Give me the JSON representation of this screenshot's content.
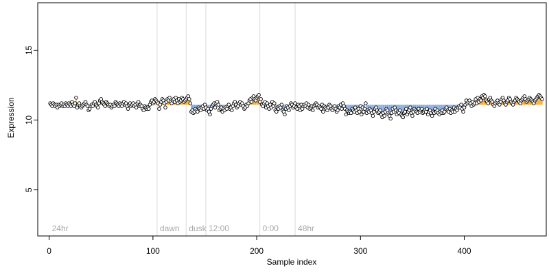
{
  "chart_data": {
    "type": "scatter",
    "xlabel": "Sample index",
    "ylabel": "Expression",
    "xlim": [
      -11,
      479
    ],
    "ylim": [
      1.7,
      18.4
    ],
    "x_ticks": [
      0,
      100,
      200,
      300,
      400
    ],
    "y_ticks": [
      5,
      10,
      15
    ],
    "grid": false,
    "baseline": 11.1,
    "colors": {
      "point_stroke": "#000000",
      "point_fill": "#ffffff",
      "above_baseline": "#F5A623",
      "below_baseline": "#7FA6E0",
      "marker_lines": "#d9d9d9",
      "marker_text": "#a8a8a8"
    },
    "markers": [
      {
        "x": 0,
        "label": "24hr",
        "line": false
      },
      {
        "x": 104,
        "label": "dawn",
        "line": true
      },
      {
        "x": 132,
        "label": "dusk",
        "line": true
      },
      {
        "x": 151,
        "label": "12:00",
        "line": true
      },
      {
        "x": 203,
        "label": "0:00",
        "line": true
      },
      {
        "x": 237,
        "label": "48hr",
        "line": true
      }
    ],
    "series": [
      {
        "values": [
          11.2,
          11.1,
          11.0,
          11.2,
          11.1,
          11.0,
          11.1,
          10.9,
          11.1,
          11.0,
          11.1,
          11.2,
          11.0,
          11.1,
          11.0,
          11.2,
          11.1,
          11.0,
          11.2,
          11.1,
          11.0,
          11.3,
          11.1,
          11.0,
          11.2,
          11.6,
          10.9,
          11.1,
          11.2,
          11.0,
          10.9,
          11.0,
          11.1,
          11.2,
          11.3,
          11.1,
          11.0,
          10.7,
          10.8,
          11.0,
          11.1,
          11.0,
          11.2,
          11.3,
          11.1,
          11.0,
          10.9,
          11.2,
          11.4,
          11.5,
          11.3,
          11.2,
          11.1,
          11.0,
          11.3,
          11.2,
          11.1,
          11.0,
          11.1,
          10.9,
          11.0,
          11.1,
          11.0,
          11.3,
          11.2,
          11.1,
          11.0,
          11.2,
          11.1,
          11.0,
          11.2,
          11.3,
          11.1,
          11.2,
          11.0,
          10.8,
          11.1,
          11.2,
          11.0,
          11.1,
          11.2,
          11.0,
          11.1,
          10.9,
          11.2,
          11.3,
          11.0,
          11.1,
          11.0,
          10.8,
          10.7,
          11.0,
          10.9,
          10.8,
          10.9,
          10.8,
          11.1,
          11.3,
          11.4,
          11.2,
          11.3,
          11.5,
          11.4,
          11.3,
          11.2,
          10.8,
          11.1,
          11.3,
          11.5,
          11.4,
          11.2,
          10.9,
          11.3,
          11.5,
          11.4,
          11.6,
          11.3,
          11.2,
          11.4,
          11.5,
          11.3,
          11.6,
          11.4,
          11.2,
          11.5,
          11.3,
          11.4,
          11.6,
          11.5,
          11.3,
          11.4,
          11.5,
          11.6,
          11.7,
          11.5,
          11.2,
          10.6,
          10.7,
          10.5,
          10.6,
          10.8,
          10.7,
          10.6,
          10.9,
          10.8,
          10.7,
          10.9,
          11.0,
          10.8,
          11.1,
          10.9,
          10.7,
          10.8,
          10.6,
          10.4,
          10.8,
          11.0,
          11.1,
          11.2,
          10.9,
          11.2,
          11.3,
          11.1,
          10.7,
          10.8,
          10.9,
          10.6,
          10.8,
          10.7,
          10.9,
          10.8,
          11.0,
          11.1,
          10.8,
          10.9,
          10.7,
          11.0,
          11.2,
          11.3,
          11.1,
          10.9,
          11.0,
          11.2,
          11.3,
          11.1,
          11.2,
          11.0,
          10.8,
          10.9,
          11.1,
          11.0,
          11.2,
          11.4,
          11.5,
          11.3,
          11.6,
          11.7,
          11.5,
          11.4,
          11.6,
          11.7,
          11.8,
          11.3,
          11.5,
          11.1,
          11.0,
          11.2,
          11.3,
          10.9,
          11.2,
          11.0,
          10.8,
          11.1,
          10.9,
          11.3,
          11.0,
          11.2,
          10.7,
          10.6,
          10.9,
          10.8,
          11.0,
          10.9,
          11.1,
          10.7,
          10.6,
          10.4,
          10.8,
          11.0,
          10.9,
          10.7,
          11.0,
          11.2,
          11.1,
          10.9,
          11.0,
          11.2,
          10.9,
          10.8,
          11.1,
          11.0,
          10.7,
          11.1,
          10.8,
          11.0,
          11.1,
          11.0,
          11.2,
          10.9,
          11.1,
          10.8,
          10.9,
          11.0,
          10.7,
          11.0,
          11.1,
          11.2,
          11.1,
          10.9,
          11.0,
          10.9,
          10.8,
          11.1,
          10.6,
          11.0,
          10.9,
          10.8,
          10.7,
          10.9,
          11.1,
          11.0,
          10.8,
          10.7,
          10.9,
          11.0,
          10.8,
          10.6,
          10.7,
          11.0,
          10.9,
          11.1,
          10.8,
          11.2,
          11.0,
          10.8,
          10.4,
          10.7,
          10.6,
          10.5,
          10.6,
          10.5,
          10.8,
          10.7,
          10.6,
          10.9,
          10.7,
          10.5,
          10.8,
          10.6,
          11.0,
          10.4,
          10.9,
          10.6,
          10.8,
          11.2,
          10.5,
          10.7,
          10.6,
          10.8,
          10.7,
          10.5,
          10.3,
          10.6,
          10.8,
          10.9,
          10.7,
          10.5,
          10.6,
          10.7,
          10.4,
          10.2,
          10.5,
          10.3,
          10.6,
          10.8,
          10.7,
          10.4,
          10.3,
          10.1,
          10.5,
          10.8,
          10.6,
          10.9,
          10.7,
          10.4,
          10.6,
          10.5,
          10.7,
          10.4,
          10.3,
          10.2,
          10.5,
          10.6,
          10.8,
          10.4,
          10.6,
          10.7,
          10.9,
          10.5,
          10.3,
          10.6,
          10.8,
          10.7,
          10.6,
          10.5,
          10.8,
          10.6,
          10.7,
          10.8,
          10.5,
          10.6,
          10.7,
          10.6,
          10.8,
          10.4,
          10.6,
          10.7,
          10.5,
          10.3,
          10.6,
          10.5,
          10.8,
          10.6,
          10.7,
          10.5,
          10.4,
          10.6,
          10.5,
          10.7,
          10.5,
          10.6,
          10.8,
          10.9,
          10.7,
          10.6,
          10.8,
          10.5,
          10.7,
          10.6,
          10.9,
          10.6,
          10.8,
          10.7,
          10.9,
          11.0,
          10.9,
          11.1,
          10.8,
          10.6,
          10.9,
          11.1,
          11.4,
          11.2,
          11.3,
          11.4,
          11.2,
          11.0,
          11.3,
          11.1,
          11.2,
          11.5,
          11.2,
          11.6,
          11.3,
          11.5,
          11.4,
          11.7,
          11.6,
          11.8,
          11.7,
          11.4,
          11.3,
          11.2,
          11.5,
          11.6,
          11.4,
          11.3,
          11.1,
          11.0,
          11.2,
          11.3,
          11.4,
          11.2,
          11.1,
          11.3,
          11.5,
          11.6,
          11.4,
          11.2,
          11.1,
          11.3,
          11.4,
          11.6,
          11.5,
          11.3,
          11.2,
          11.1,
          11.3,
          11.4,
          11.6,
          11.5,
          11.4,
          11.3,
          11.2,
          11.4,
          11.5,
          11.6,
          11.7,
          11.5,
          11.3,
          11.4,
          11.5,
          11.6,
          11.5,
          11.4,
          11.3,
          11.2,
          11.4,
          11.5,
          11.6,
          11.7,
          11.8,
          11.7,
          11.6,
          11.5
        ]
      }
    ]
  }
}
